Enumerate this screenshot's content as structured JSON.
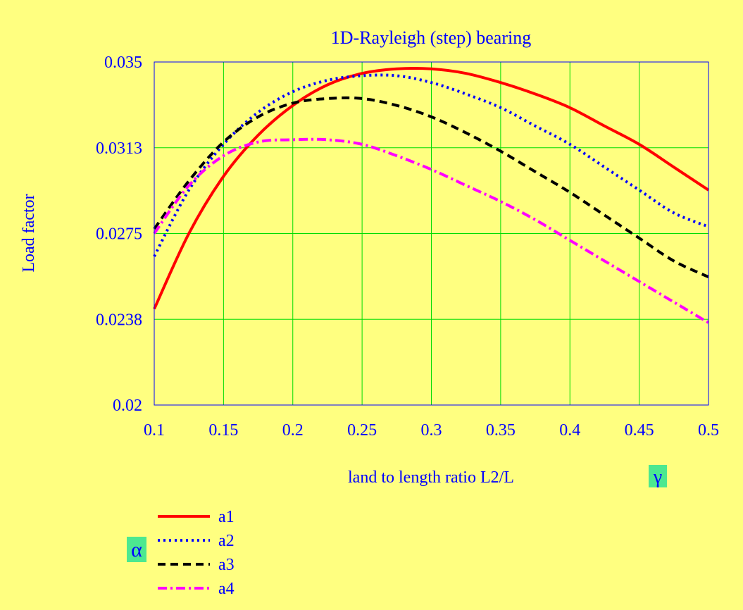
{
  "chart_data": {
    "type": "line",
    "title": "1D-Rayleigh (step) bearing",
    "xlabel": "land to length ratio L2/L",
    "ylabel": "Load factor",
    "xlim": [
      0.1,
      0.5
    ],
    "ylim": [
      0.02,
      0.035
    ],
    "x_ticks": [
      "0.1",
      "0.15",
      "0.2",
      "0.25",
      "0.3",
      "0.35",
      "0.4",
      "0.45",
      "0.5"
    ],
    "y_ticks": [
      {
        "value": 0.02,
        "label": "0.02"
      },
      {
        "value": 0.02375,
        "label": "0.0238"
      },
      {
        "value": 0.0275,
        "label": "0.0275"
      },
      {
        "value": 0.03125,
        "label": "0.0313"
      },
      {
        "value": 0.035,
        "label": "0.035"
      }
    ],
    "grid": true,
    "x_symbol": "γ",
    "legend_symbol": "α",
    "legend_position": "bottom-left",
    "series": [
      {
        "name": "a1",
        "color": "#ff0000",
        "style": "solid",
        "x": [
          0.1,
          0.125,
          0.15,
          0.175,
          0.2,
          0.225,
          0.25,
          0.275,
          0.3,
          0.325,
          0.35,
          0.375,
          0.4,
          0.425,
          0.45,
          0.475,
          0.5
        ],
        "y": [
          0.0242,
          0.0275,
          0.03,
          0.0318,
          0.0331,
          0.034,
          0.0345,
          0.0347,
          0.0347,
          0.0345,
          0.0341,
          0.0336,
          0.033,
          0.0322,
          0.0314,
          0.0304,
          0.0294
        ]
      },
      {
        "name": "a2",
        "color": "#0000ff",
        "style": "dotted",
        "x": [
          0.1,
          0.125,
          0.15,
          0.175,
          0.2,
          0.225,
          0.25,
          0.275,
          0.3,
          0.325,
          0.35,
          0.375,
          0.4,
          0.425,
          0.45,
          0.475,
          0.5
        ],
        "y": [
          0.0265,
          0.0294,
          0.0314,
          0.0328,
          0.0337,
          0.0342,
          0.0344,
          0.0344,
          0.0341,
          0.0336,
          0.033,
          0.0322,
          0.0314,
          0.0304,
          0.0294,
          0.0284,
          0.0278
        ]
      },
      {
        "name": "a3",
        "color": "#000000",
        "style": "dashed",
        "x": [
          0.1,
          0.125,
          0.15,
          0.175,
          0.2,
          0.225,
          0.25,
          0.275,
          0.3,
          0.325,
          0.35,
          0.375,
          0.4,
          0.425,
          0.45,
          0.475,
          0.5
        ],
        "y": [
          0.0277,
          0.0298,
          0.0315,
          0.0326,
          0.0332,
          0.0334,
          0.0334,
          0.0331,
          0.0326,
          0.0319,
          0.0311,
          0.0302,
          0.0293,
          0.0283,
          0.0273,
          0.0263,
          0.0256
        ]
      },
      {
        "name": "a4",
        "color": "#ff00ff",
        "style": "dashdot",
        "x": [
          0.1,
          0.125,
          0.15,
          0.175,
          0.2,
          0.225,
          0.25,
          0.275,
          0.3,
          0.325,
          0.35,
          0.375,
          0.4,
          0.425,
          0.45,
          0.475,
          0.5
        ],
        "y": [
          0.0275,
          0.0296,
          0.0309,
          0.0315,
          0.0316,
          0.0316,
          0.0314,
          0.0309,
          0.0303,
          0.0296,
          0.0289,
          0.0281,
          0.0272,
          0.0263,
          0.0254,
          0.0245,
          0.0236
        ]
      }
    ]
  }
}
